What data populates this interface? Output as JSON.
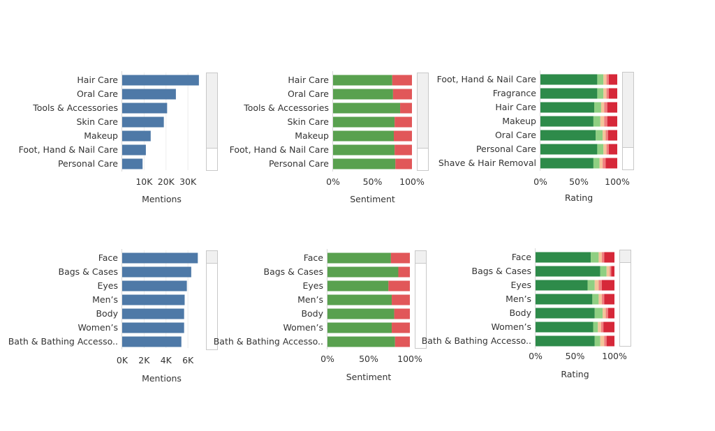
{
  "colors": {
    "mentions": "#4e79a7",
    "sentiment_positive": "#59a14f",
    "sentiment_negative": "#e15759",
    "rating": [
      "#2e8b4a",
      "#8fcf82",
      "#f4c49a",
      "#f08080",
      "#d62839"
    ]
  },
  "chart_data": [
    {
      "type": "bar",
      "categories": [
        "Hair Care",
        "Oral Care",
        "Tools & Accessories",
        "Skin Care",
        "Makeup",
        "Foot, Hand & Nail Care",
        "Personal Care"
      ],
      "values": [
        35000,
        24500,
        20500,
        19000,
        13000,
        10800,
        9300
      ],
      "xlabel": "Mentions",
      "xlim": [
        0,
        36000
      ],
      "xticks": [
        10000,
        20000,
        30000
      ],
      "xtick_labels": [
        "10K",
        "20K",
        "30K"
      ],
      "grid": true,
      "series": [
        {
          "values": [
            35000,
            24500,
            20500,
            19000,
            13000,
            10800,
            9300
          ]
        }
      ]
    },
    {
      "type": "bar",
      "stacked": true,
      "categories": [
        "Hair Care",
        "Oral Care",
        "Tools & Accessories",
        "Skin Care",
        "Makeup",
        "Foot, Hand & Nail Care",
        "Personal Care"
      ],
      "xlabel": "Sentiment",
      "xlim": [
        0,
        1
      ],
      "xticks": [
        0,
        0.5,
        1
      ],
      "xtick_labels": [
        "0%",
        "50%",
        "100%"
      ],
      "series": [
        {
          "values": [
            0.75,
            0.76,
            0.85,
            0.78,
            0.77,
            0.78,
            0.79
          ]
        },
        {
          "values": [
            0.25,
            0.24,
            0.15,
            0.22,
            0.23,
            0.22,
            0.21
          ]
        }
      ]
    },
    {
      "type": "bar",
      "stacked": true,
      "categories": [
        "Foot, Hand & Nail Care",
        "Fragrance",
        "Hair Care",
        "Makeup",
        "Oral Care",
        "Personal Care",
        "Shave & Hair Removal"
      ],
      "xlabel": "Rating",
      "xlim": [
        0,
        1
      ],
      "xticks": [
        0,
        0.5,
        1
      ],
      "xtick_labels": [
        "0%",
        "50%",
        "100%"
      ],
      "series": [
        {
          "values": [
            0.74,
            0.74,
            0.7,
            0.69,
            0.72,
            0.74,
            0.69
          ]
        },
        {
          "values": [
            0.08,
            0.08,
            0.09,
            0.09,
            0.09,
            0.08,
            0.08
          ]
        },
        {
          "values": [
            0.04,
            0.04,
            0.04,
            0.05,
            0.04,
            0.04,
            0.04
          ]
        },
        {
          "values": [
            0.03,
            0.03,
            0.04,
            0.04,
            0.03,
            0.03,
            0.04
          ]
        },
        {
          "values": [
            0.11,
            0.11,
            0.13,
            0.13,
            0.12,
            0.11,
            0.15
          ]
        }
      ]
    },
    {
      "type": "bar",
      "categories": [
        "Face",
        "Bags & Cases",
        "Eyes",
        "Men’s",
        "Body",
        "Women’s",
        "Bath & Bathing Accesso.."
      ],
      "values": [
        6900,
        6300,
        5900,
        5700,
        5650,
        5650,
        5400
      ],
      "xlabel": "Mentions",
      "xlim": [
        0,
        7200
      ],
      "xticks": [
        0,
        2000,
        4000,
        6000
      ],
      "xtick_labels": [
        "0K",
        "2K",
        "4K",
        "6K"
      ],
      "grid": true,
      "series": [
        {
          "values": [
            6900,
            6300,
            5900,
            5700,
            5650,
            5650,
            5400
          ]
        }
      ]
    },
    {
      "type": "bar",
      "stacked": true,
      "categories": [
        "Face",
        "Bags & Cases",
        "Eyes",
        "Men’s",
        "Body",
        "Women’s",
        "Bath & Bathing Accesso.."
      ],
      "xlabel": "Sentiment",
      "xlim": [
        0,
        1
      ],
      "xticks": [
        0,
        0.5,
        1
      ],
      "xtick_labels": [
        "0%",
        "50%",
        "100%"
      ],
      "series": [
        {
          "values": [
            0.77,
            0.86,
            0.74,
            0.78,
            0.81,
            0.78,
            0.82
          ]
        },
        {
          "values": [
            0.23,
            0.14,
            0.26,
            0.22,
            0.19,
            0.22,
            0.18
          ]
        }
      ]
    },
    {
      "type": "bar",
      "stacked": true,
      "categories": [
        "Face",
        "Bags & Cases",
        "Eyes",
        "Men’s",
        "Body",
        "Women’s",
        "Bath & Bathing Accesso.."
      ],
      "xlabel": "Rating",
      "xlim": [
        0,
        1
      ],
      "xticks": [
        0,
        0.5,
        1
      ],
      "xtick_labels": [
        "0%",
        "50%",
        "100%"
      ],
      "series": [
        {
          "values": [
            0.7,
            0.82,
            0.66,
            0.72,
            0.75,
            0.73,
            0.75
          ]
        },
        {
          "values": [
            0.1,
            0.08,
            0.09,
            0.08,
            0.1,
            0.06,
            0.07
          ]
        },
        {
          "values": [
            0.04,
            0.04,
            0.05,
            0.04,
            0.04,
            0.04,
            0.05
          ]
        },
        {
          "values": [
            0.03,
            0.02,
            0.04,
            0.03,
            0.03,
            0.03,
            0.03
          ]
        },
        {
          "values": [
            0.13,
            0.04,
            0.16,
            0.13,
            0.08,
            0.14,
            0.1
          ]
        }
      ]
    }
  ]
}
